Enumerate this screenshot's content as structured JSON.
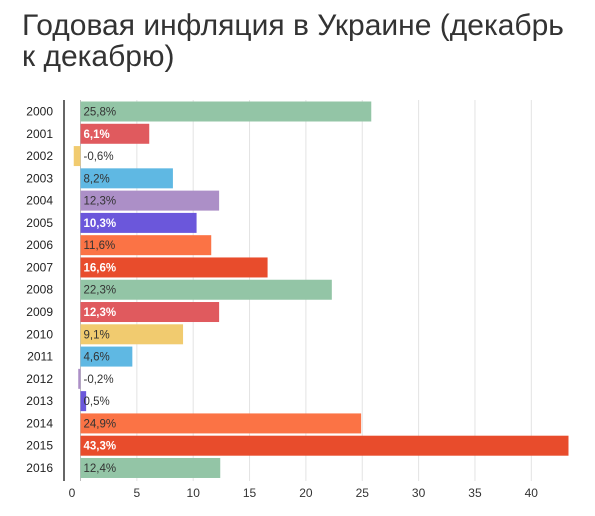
{
  "chart_data": {
    "type": "bar",
    "orientation": "horizontal",
    "title": "Годовая инфляция в Украине (декабрь к декабрю)",
    "xlabel": "",
    "ylabel": "",
    "xlim": [
      0,
      44
    ],
    "xticks": [
      0,
      5,
      10,
      15,
      20,
      25,
      30,
      35,
      40
    ],
    "grid": true,
    "legend": "none",
    "categories": [
      "2000",
      "2001",
      "2002",
      "2003",
      "2004",
      "2005",
      "2006",
      "2007",
      "2008",
      "2009",
      "2010",
      "2011",
      "2012",
      "2013",
      "2014",
      "2015",
      "2016"
    ],
    "values": [
      25.8,
      6.1,
      -0.6,
      8.2,
      12.3,
      10.3,
      11.6,
      16.6,
      22.3,
      12.3,
      9.1,
      4.6,
      -0.2,
      0.5,
      24.9,
      43.3,
      12.4
    ],
    "labels": [
      "25,8%",
      "6,1%",
      "-0,6%",
      "8,2%",
      "12,3%",
      "10,3%",
      "11,6%",
      "16,6%",
      "22,3%",
      "12,3%",
      "9,1%",
      "4,6%",
      "-0,2%",
      "0,5%",
      "24,9%",
      "43,3%",
      "12,4%"
    ],
    "colors": [
      "#93c5a6",
      "#e05a5e",
      "#f1cb6f",
      "#5fb8e3",
      "#ac8fc7",
      "#6b57db",
      "#fb7345",
      "#e84c2c",
      "#93c5a6",
      "#e05a5e",
      "#f1cb6f",
      "#5fb8e3",
      "#ac8fc7",
      "#6b57db",
      "#fb7345",
      "#e84c2c",
      "#93c5a6"
    ],
    "label_colors": [
      "#333333",
      "#ffffff",
      "#333333",
      "#333333",
      "#333333",
      "#ffffff",
      "#333333",
      "#ffffff",
      "#333333",
      "#ffffff",
      "#333333",
      "#333333",
      "#333333",
      "#333333",
      "#333333",
      "#ffffff",
      "#333333"
    ],
    "label_bold": [
      false,
      true,
      false,
      false,
      false,
      true,
      false,
      true,
      false,
      true,
      false,
      false,
      false,
      false,
      false,
      true,
      false
    ]
  }
}
